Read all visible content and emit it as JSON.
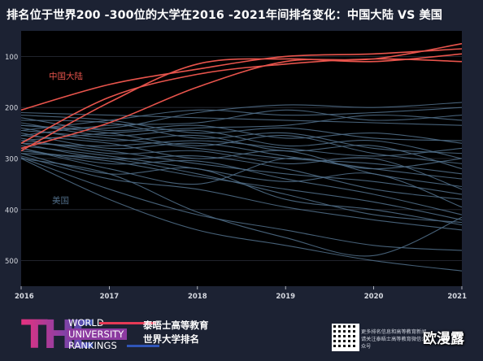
{
  "page": {
    "title": "排名位于世界200 -300位的大学在2016 -2021年间排名变化：中国大陆 VS 美国"
  },
  "footer": {
    "logo_letters": "THE",
    "logo_line1": "WORLD",
    "logo_line2": "UNIVERSITY",
    "logo_line3": "RANKINGS",
    "brand_line1": "泰晤士高等教育",
    "brand_line2": "世界大学排名",
    "qr_line1": "更多排名信息和高等教育新闻",
    "qr_line2": "请关注泰晤士高等教育微信公众号",
    "watermark": "欧漫露"
  },
  "colors": {
    "background": "#1c2233",
    "plot_bg": "#000000",
    "china": "#e8544c",
    "usa": "#4e6a84",
    "axis_text": "#d6d9e0"
  },
  "chart_data": {
    "type": "line",
    "title": "排名位于世界200 -300位的大学在2016 -2021年间排名变化：中国大陆 VS 美国",
    "xlabel": "",
    "ylabel": "",
    "x": [
      2016,
      2017,
      2018,
      2019,
      2020,
      2021
    ],
    "x_ticks": [
      "2016",
      "2017",
      "2018",
      "2019",
      "2020",
      "2021"
    ],
    "y_ticks": [
      "100",
      "200",
      "300",
      "400",
      "500"
    ],
    "ylim": [
      550,
      50
    ],
    "y_reversed": true,
    "grid": "horizontal",
    "annotations": [
      {
        "text": "中国大陆",
        "group": "china"
      },
      {
        "text": "美国",
        "group": "usa"
      }
    ],
    "series": [
      {
        "group": "china",
        "values": [
          205,
          155,
          125,
          100,
          95,
          85
        ]
      },
      {
        "group": "china",
        "values": [
          280,
          230,
          160,
          110,
          105,
          75
        ]
      },
      {
        "group": "china",
        "values": [
          285,
          190,
          115,
          105,
          110,
          95
        ]
      },
      {
        "group": "china",
        "values": [
          270,
          180,
          135,
          115,
          105,
          110
        ]
      },
      {
        "group": "usa",
        "values": [
          210,
          215,
          220,
          225,
          230,
          235
        ]
      },
      {
        "group": "usa",
        "values": [
          215,
          225,
          250,
          240,
          260,
          265
        ]
      },
      {
        "group": "usa",
        "values": [
          220,
          245,
          235,
          260,
          250,
          270
        ]
      },
      {
        "group": "usa",
        "values": [
          225,
          230,
          260,
          250,
          280,
          290
        ]
      },
      {
        "group": "usa",
        "values": [
          230,
          255,
          245,
          275,
          265,
          300
        ]
      },
      {
        "group": "usa",
        "values": [
          235,
          250,
          275,
          255,
          290,
          310
        ]
      },
      {
        "group": "usa",
        "values": [
          240,
          265,
          255,
          285,
          275,
          320
        ]
      },
      {
        "group": "usa",
        "values": [
          245,
          260,
          280,
          300,
          310,
          330
        ]
      },
      {
        "group": "usa",
        "values": [
          250,
          280,
          270,
          295,
          320,
          340
        ]
      },
      {
        "group": "usa",
        "values": [
          255,
          270,
          300,
          285,
          330,
          355
        ]
      },
      {
        "group": "usa",
        "values": [
          260,
          290,
          285,
          310,
          300,
          360
        ]
      },
      {
        "group": "usa",
        "values": [
          265,
          285,
          310,
          330,
          345,
          370
        ]
      },
      {
        "group": "usa",
        "values": [
          270,
          300,
          295,
          320,
          360,
          380
        ]
      },
      {
        "group": "usa",
        "values": [
          275,
          295,
          320,
          345,
          330,
          395
        ]
      },
      {
        "group": "usa",
        "values": [
          280,
          310,
          305,
          340,
          370,
          410
        ]
      },
      {
        "group": "usa",
        "values": [
          285,
          305,
          335,
          360,
          385,
          420
        ]
      },
      {
        "group": "usa",
        "values": [
          290,
          330,
          320,
          380,
          400,
          430
        ]
      },
      {
        "group": "usa",
        "values": [
          295,
          340,
          360,
          395,
          420,
          440
        ]
      },
      {
        "group": "usa",
        "values": [
          298,
          360,
          410,
          440,
          470,
          480
        ]
      },
      {
        "group": "usa",
        "values": [
          300,
          380,
          440,
          470,
          500,
          520
        ]
      },
      {
        "group": "usa",
        "values": [
          235,
          240,
          210,
          195,
          200,
          190
        ]
      },
      {
        "group": "usa",
        "values": [
          245,
          225,
          205,
          215,
          210,
          200
        ]
      },
      {
        "group": "usa",
        "values": [
          255,
          235,
          230,
          205,
          225,
          215
        ]
      },
      {
        "group": "usa",
        "values": [
          265,
          250,
          240,
          235,
          215,
          225
        ]
      },
      {
        "group": "usa",
        "values": [
          300,
          330,
          405,
          455,
          490,
          415
        ]
      },
      {
        "group": "usa",
        "values": [
          290,
          300,
          330,
          370,
          410,
          425
        ]
      },
      {
        "group": "usa",
        "values": [
          280,
          320,
          350,
          300,
          320,
          300
        ]
      },
      {
        "group": "usa",
        "values": [
          270,
          275,
          265,
          280,
          295,
          280
        ]
      }
    ]
  }
}
